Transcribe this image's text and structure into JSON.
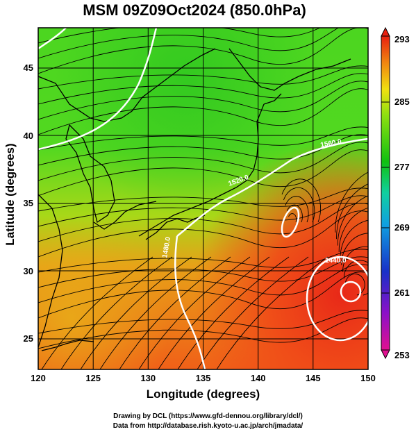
{
  "chart_data": {
    "type": "heatmap",
    "title": "MSM 09Z09Oct2024 (850.0hPa)",
    "xlabel": "Longitude (degrees)",
    "ylabel": "Latitude  (degrees)",
    "xlim": [
      120,
      150
    ],
    "ylim": [
      22.4,
      47.6
    ],
    "x_ticks": [
      "120",
      "125",
      "130",
      "135",
      "140",
      "145",
      "150"
    ],
    "y_ticks": [
      "25",
      "30",
      "35",
      "40",
      "45"
    ],
    "colorbar": {
      "min": 253,
      "max": 293,
      "ticks": [
        "293",
        "285",
        "277",
        "269",
        "261",
        "253"
      ],
      "palette": [
        "#e01090",
        "#8a10c8",
        "#1830c8",
        "#10a0e0",
        "#10d0a0",
        "#10c010",
        "#90e010",
        "#f0e010",
        "#f08010",
        "#e82010"
      ]
    },
    "contour_labels": [
      "1440.0",
      "1480.0",
      "1520.0",
      "1560.0"
    ],
    "grid": true
  },
  "credits": {
    "line1": "Drawing by DCL (https://www.gfd-dennou.org/library/dcl/)",
    "line2": "Data from http://database.rish.kyoto-u.ac.jp/arch/jmadata/"
  }
}
